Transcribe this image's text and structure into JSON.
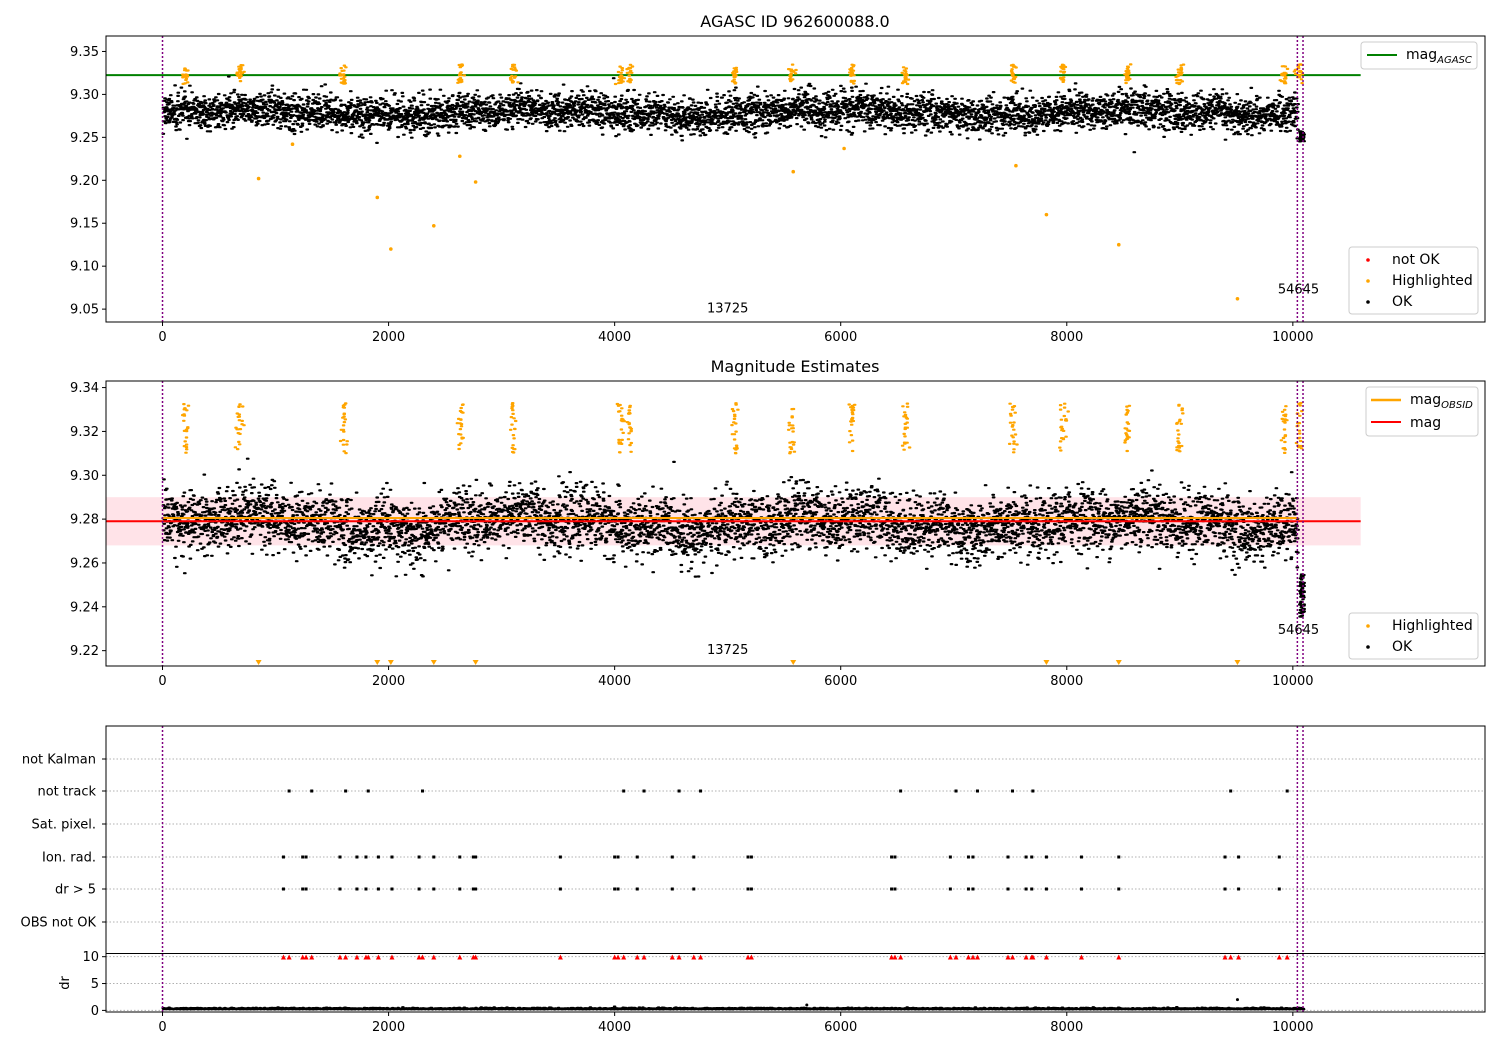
{
  "figure": {
    "title": "AGASC ID 962600088.0"
  },
  "chart_data": [
    {
      "type": "scatter",
      "title": "AGASC ID 962600088.0",
      "xlabel": "",
      "ylabel": "",
      "xlim": [
        -500,
        11700
      ],
      "ylim": [
        9.035,
        9.368
      ],
      "x_ticks": [
        0,
        2000,
        4000,
        6000,
        8000,
        10000
      ],
      "y_ticks": [
        9.05,
        9.1,
        9.15,
        9.2,
        9.25,
        9.3,
        9.35
      ],
      "y_tick_labels": [
        "9.05",
        "9.10",
        "9.15",
        "9.20",
        "9.25",
        "9.30",
        "9.35"
      ],
      "hlines": [
        {
          "name": "mag_AGASC",
          "y": 9.3225,
          "x_range": [
            -500,
            10600
          ],
          "color": "#008000"
        }
      ],
      "vlines": [
        {
          "x": 0
        },
        {
          "x": 10040
        },
        {
          "x": 10090
        }
      ],
      "obsid_labels": [
        {
          "text": "13725",
          "x": 5000,
          "y": 9.046
        },
        {
          "text": "54645",
          "x": 10050,
          "y": 9.068
        }
      ],
      "series": [
        {
          "name": "not OK",
          "color": "#ff0000",
          "points": []
        },
        {
          "name": "Highlighted",
          "color": "#ffa500",
          "outliers": [
            [
              850,
              9.202
            ],
            [
              1900,
              9.18
            ],
            [
              2020,
              9.12
            ],
            [
              2400,
              9.147
            ],
            [
              2630,
              9.228
            ],
            [
              2770,
              9.198
            ],
            [
              5580,
              9.21
            ],
            [
              7550,
              9.217
            ],
            [
              7820,
              9.16
            ],
            [
              8460,
              9.125
            ],
            [
              9510,
              9.062
            ],
            [
              1150,
              9.242
            ],
            [
              6030,
              9.237
            ]
          ]
        },
        {
          "name": "OK",
          "color": "#000000",
          "band": {
            "center": 9.278,
            "spread": 0.02
          }
        }
      ],
      "legend": {
        "position": "bottom-right",
        "entries": [
          "not OK",
          "Highlighted",
          "OK"
        ],
        "line_entry_main": "mag",
        "line_entry_sub": "AGASC"
      }
    },
    {
      "type": "scatter",
      "title": "Magnitude Estimates",
      "xlabel": "",
      "ylabel": "",
      "xlim": [
        -500,
        11700
      ],
      "ylim": [
        9.213,
        9.343
      ],
      "x_ticks": [
        0,
        2000,
        4000,
        6000,
        8000,
        10000
      ],
      "y_ticks": [
        9.22,
        9.24,
        9.26,
        9.28,
        9.3,
        9.32,
        9.34
      ],
      "y_tick_labels": [
        "9.22",
        "9.24",
        "9.26",
        "9.28",
        "9.30",
        "9.32",
        "9.34"
      ],
      "hlines": [
        {
          "name": "mag",
          "y": 9.279,
          "x_range": [
            -500,
            10600
          ],
          "color": "#ff0000"
        },
        {
          "name": "mag_OBSID",
          "y": 9.2805,
          "x_range": [
            0,
            10050
          ],
          "color": "#ffa500"
        }
      ],
      "band": {
        "y_low": 9.268,
        "y_high": 9.29,
        "color": "#ffc0cb"
      },
      "vlines": [
        {
          "x": 0
        },
        {
          "x": 10040
        },
        {
          "x": 10090
        }
      ],
      "obsid_labels": [
        {
          "text": "13725",
          "x": 5000,
          "y": 9.2185
        },
        {
          "text": "54645",
          "x": 10050,
          "y": 9.2275
        }
      ],
      "series": [
        {
          "name": "Highlighted",
          "color": "#ffa500",
          "clipped_x": [
            850,
            1900,
            2020,
            2400,
            2770,
            5580,
            7820,
            8460,
            9510
          ]
        },
        {
          "name": "OK",
          "color": "#000000",
          "band": {
            "center": 9.278,
            "spread": 0.014
          }
        }
      ],
      "legend": {
        "position": "top-right",
        "entries": [
          "mag_OBSID",
          "mag"
        ],
        "line_entry_main": "mag",
        "line_entry_sub": "OBSID",
        "line_entry_2": "mag",
        "point_legend_position": "bottom-right",
        "point_entries": [
          "Highlighted",
          "OK"
        ]
      }
    },
    {
      "type": "scatter",
      "title": "",
      "xlabel": "",
      "ylabel": "",
      "xlim": [
        -500,
        11700
      ],
      "x_ticks": [
        0,
        2000,
        4000,
        6000,
        8000,
        10000
      ],
      "flag_categories": [
        "not Kalman",
        "not track",
        "Sat. pixel.",
        "Ion. rad.",
        "dr > 5",
        "OBS not OK"
      ],
      "flags": {
        "not track": [
          1120,
          1320,
          1620,
          1820,
          2300,
          4080,
          4260,
          4570,
          4760,
          6530,
          7020,
          7210,
          7520,
          7700,
          9450,
          9950
        ],
        "Ion. rad.": [
          1070,
          1240,
          1270,
          1570,
          1720,
          1800,
          1910,
          2030,
          2270,
          2400,
          2630,
          2750,
          2770,
          3520,
          4000,
          4030,
          4200,
          4510,
          4700,
          5180,
          5210,
          6450,
          6480,
          6970,
          7130,
          7170,
          7480,
          7640,
          7690,
          7820,
          8130,
          8460,
          9400,
          9520,
          9880
        ],
        "dr > 5": [
          1070,
          1240,
          1270,
          1570,
          1720,
          1800,
          1910,
          2030,
          2270,
          2400,
          2630,
          2750,
          2770,
          3520,
          4000,
          4030,
          4200,
          4510,
          4700,
          5180,
          5210,
          6450,
          6480,
          6970,
          7130,
          7170,
          7480,
          7640,
          7690,
          7820,
          8130,
          8460,
          9400,
          9520,
          9880
        ]
      },
      "dr": {
        "ylabel": "dr",
        "ylim": [
          -0.3,
          10.5
        ],
        "y_ticks": [
          0,
          5,
          10
        ],
        "y_tick_labels": [
          "0",
          "5",
          "10"
        ],
        "clipped_marker_x": [
          1070,
          1120,
          1240,
          1270,
          1320,
          1570,
          1620,
          1720,
          1800,
          1820,
          1910,
          2030,
          2270,
          2300,
          2400,
          2630,
          2750,
          2770,
          3520,
          4000,
          4030,
          4080,
          4200,
          4260,
          4510,
          4570,
          4700,
          4760,
          5180,
          5210,
          6450,
          6480,
          6530,
          6970,
          7020,
          7130,
          7170,
          7210,
          7480,
          7520,
          7640,
          7690,
          7700,
          7820,
          8130,
          8460,
          9400,
          9450,
          9520,
          9880,
          9950
        ],
        "spikes": [
          [
            9510,
            2.0
          ],
          [
            5700,
            1.0
          ]
        ]
      },
      "vlines": [
        {
          "x": 0
        },
        {
          "x": 10040
        },
        {
          "x": 10090
        }
      ]
    }
  ]
}
